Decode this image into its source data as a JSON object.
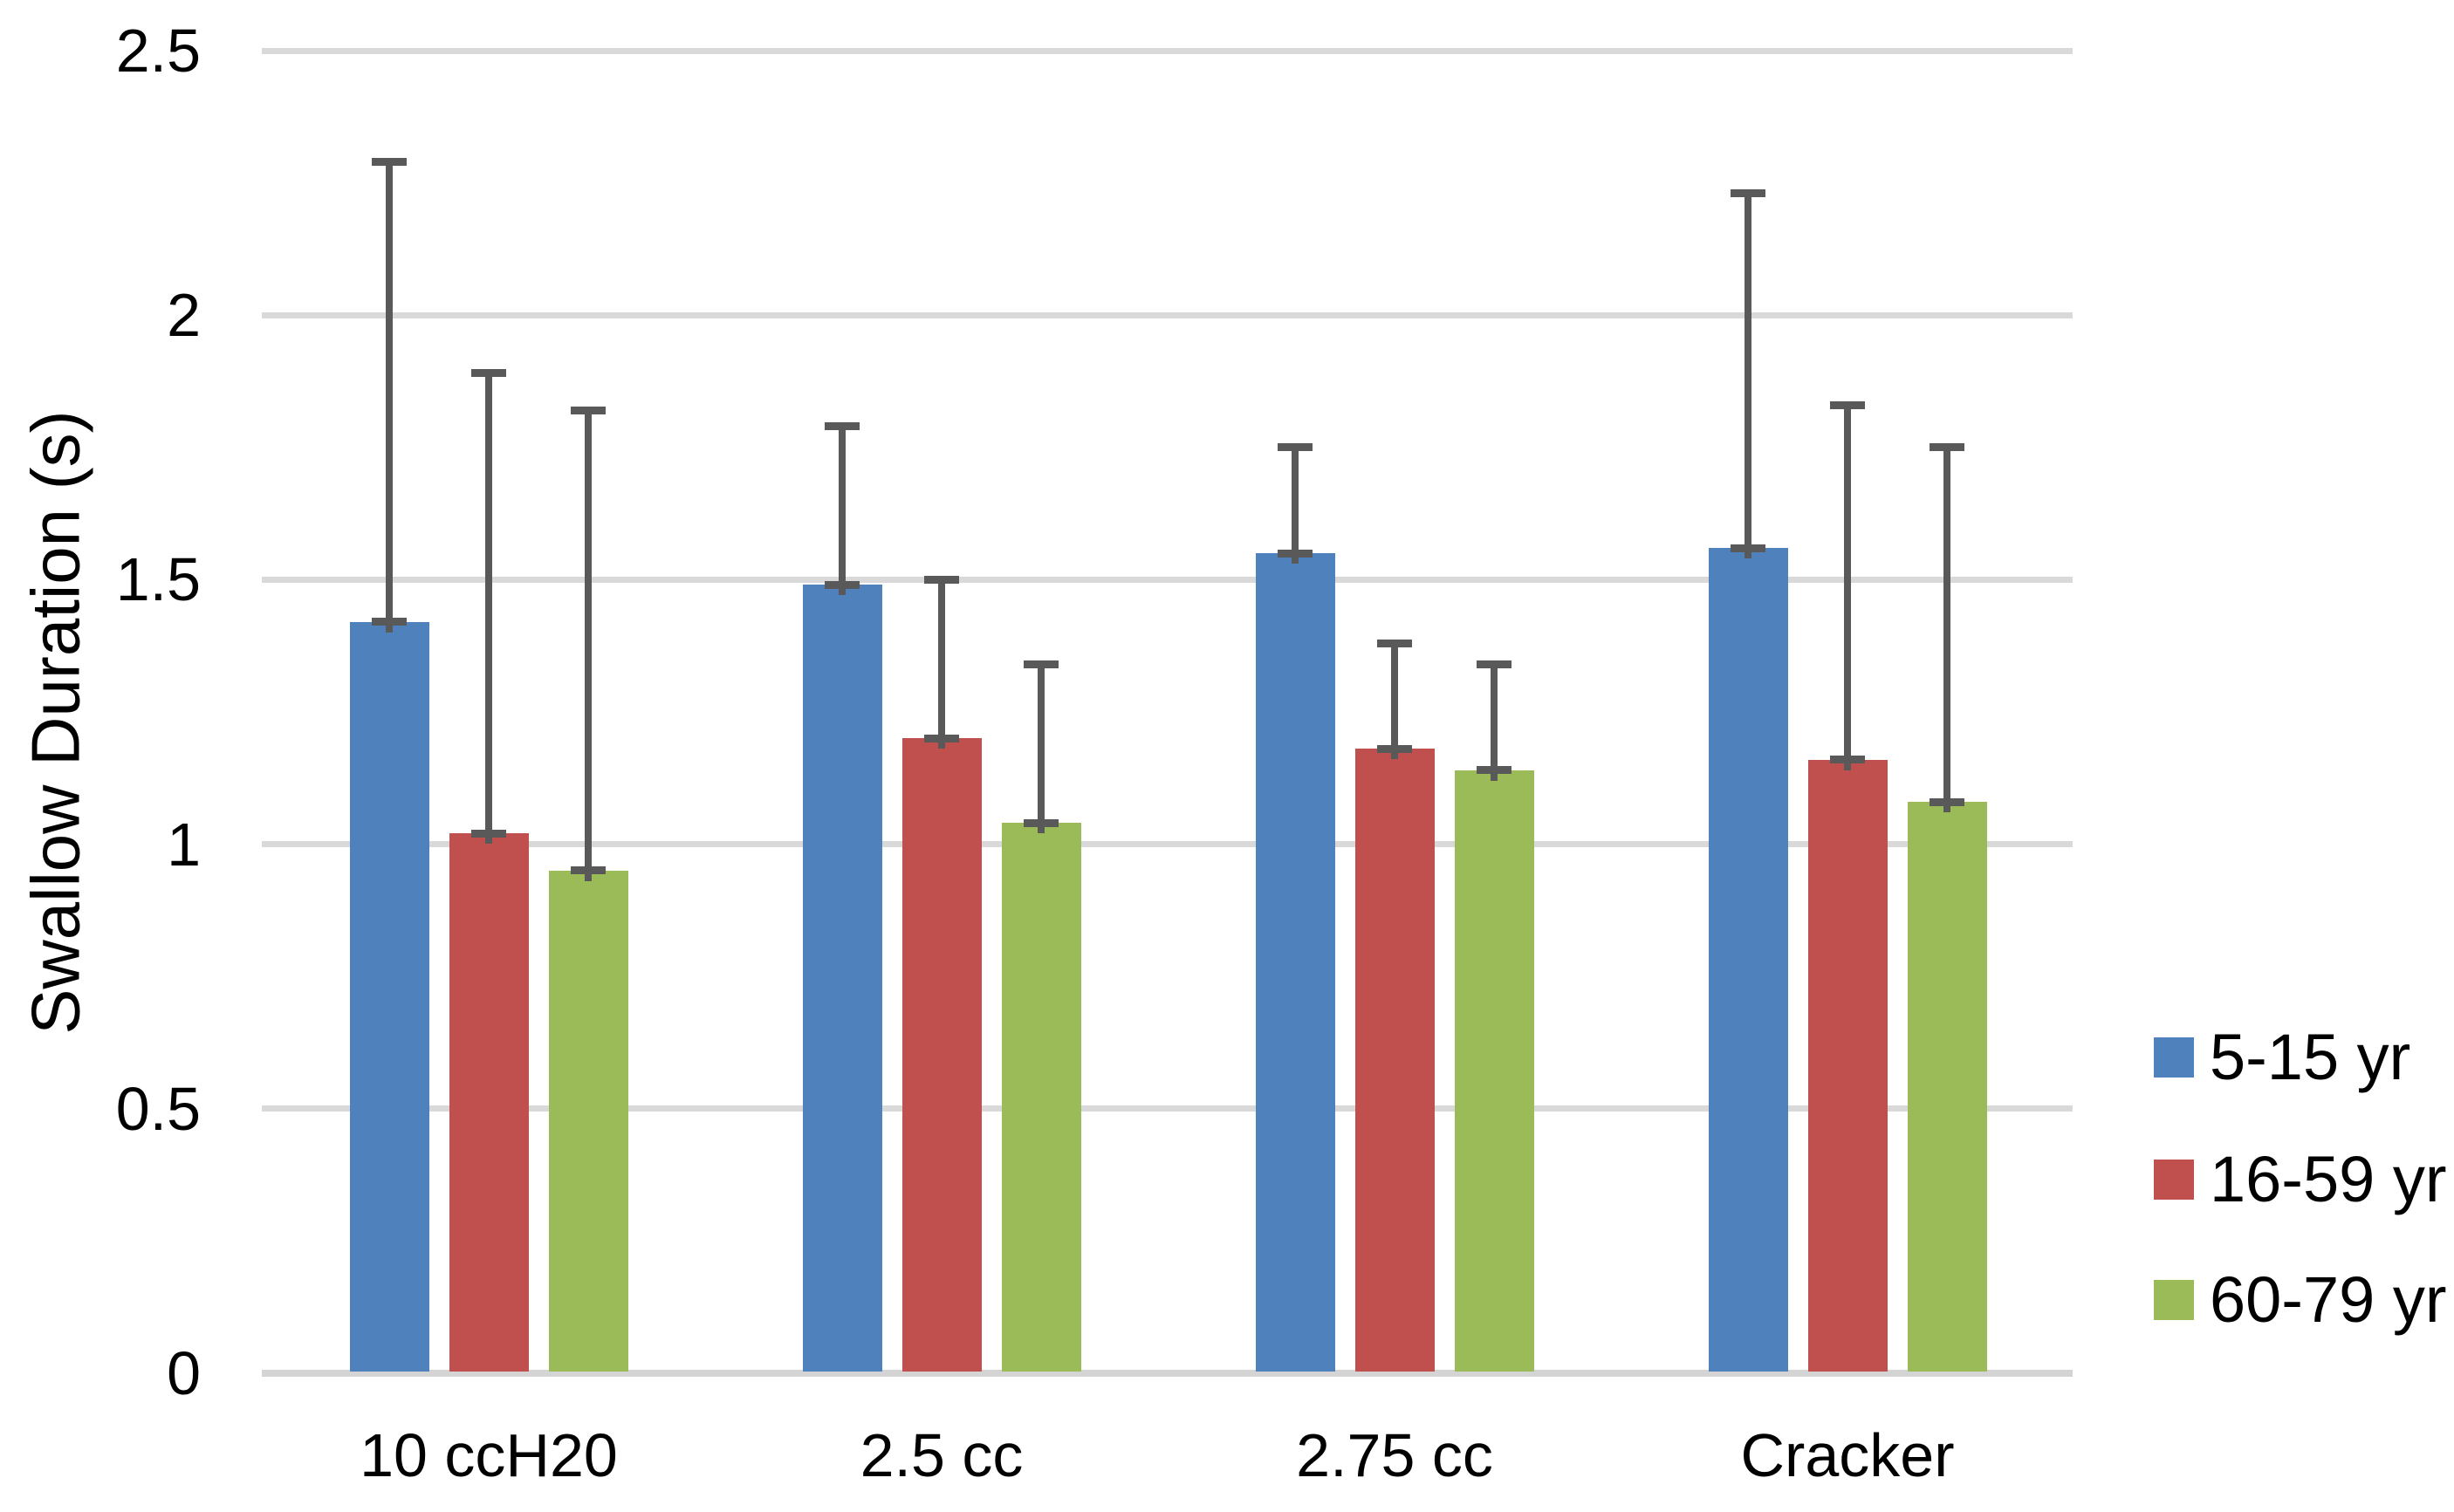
{
  "chart_data": {
    "type": "bar",
    "title": "",
    "xlabel": "",
    "ylabel": "Swallow Duration (s)",
    "categories": [
      "10 ccH20",
      "2.5 cc",
      "2.75 cc",
      "Cracker"
    ],
    "series": [
      {
        "name": "5-15 yr",
        "color": "#4F81BD",
        "values": [
          1.42,
          1.49,
          1.55,
          1.56
        ],
        "error_plus": [
          0.87,
          0.3,
          0.2,
          0.67
        ]
      },
      {
        "name": "16-59 yr",
        "color": "#C0504D",
        "values": [
          1.02,
          1.2,
          1.18,
          1.16
        ],
        "error_plus": [
          0.87,
          0.3,
          0.2,
          0.67
        ]
      },
      {
        "name": "60-79 yr",
        "color": "#9BBB59",
        "values": [
          0.95,
          1.04,
          1.14,
          1.08
        ],
        "error_plus": [
          0.87,
          0.3,
          0.2,
          0.67
        ]
      }
    ],
    "ylim": [
      0,
      2.5
    ],
    "yticks": [
      0,
      0.5,
      1,
      1.5,
      2,
      2.5
    ],
    "ytick_labels": [
      "0",
      "0.5",
      "1",
      "1.5",
      "2",
      "2.5"
    ],
    "grid": true,
    "legend_position": "right",
    "error_bar_style": "plus-direction whiskers with caps at both ends",
    "colors": {
      "gridline": "#D9D9D9",
      "axis_line": "#D4D4D4",
      "error_bar": "#595959",
      "text": "#000000",
      "background": "#FFFFFF"
    }
  }
}
